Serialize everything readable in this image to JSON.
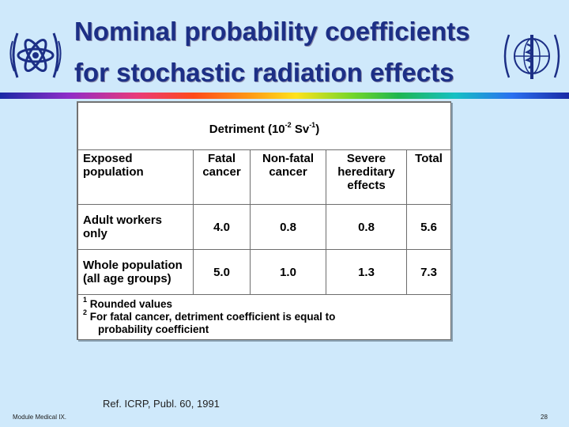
{
  "title": {
    "line1": "Nominal probability coefficients",
    "line2": "for stochastic radiation effects"
  },
  "logos": {
    "left": "atom-logo-icon",
    "right": "world-health-emblem-icon",
    "color": "#1c2f86"
  },
  "table": {
    "super_header": {
      "text": "Detriment (10",
      "exponent": "-2",
      "unit": "Sv",
      "unit_exponent": "-1",
      "close": ")"
    },
    "columns": [
      {
        "line1": "Exposed",
        "line2": "population",
        "line3": ""
      },
      {
        "line1": "Fatal",
        "line2": "cancer",
        "line3": ""
      },
      {
        "line1": "Non-fatal",
        "line2": "cancer",
        "line3": ""
      },
      {
        "line1": "Severe",
        "line2": "hereditary",
        "line3": "effects"
      },
      {
        "line1": "Total",
        "line2": "",
        "line3": ""
      }
    ],
    "rows": [
      {
        "label1": "Adult workers",
        "label2": "only",
        "fatal": "4.0",
        "nonfatal": "0.8",
        "hereditary": "0.8",
        "total": "5.6"
      },
      {
        "label1": "Whole population",
        "label2": "(all age groups)",
        "fatal": "5.0",
        "nonfatal": "1.0",
        "hereditary": "1.3",
        "total": "7.3"
      }
    ],
    "notes": [
      {
        "mark": "1",
        "text": "Rounded values",
        "cont": ""
      },
      {
        "mark": "2",
        "text": "For fatal cancer, detriment coefficient is equal to",
        "cont": "probability coefficient"
      }
    ]
  },
  "reference": "Ref. ICRP, Publ. 60, 1991",
  "footer": {
    "left": "Module Medical IX.",
    "page": "28"
  }
}
